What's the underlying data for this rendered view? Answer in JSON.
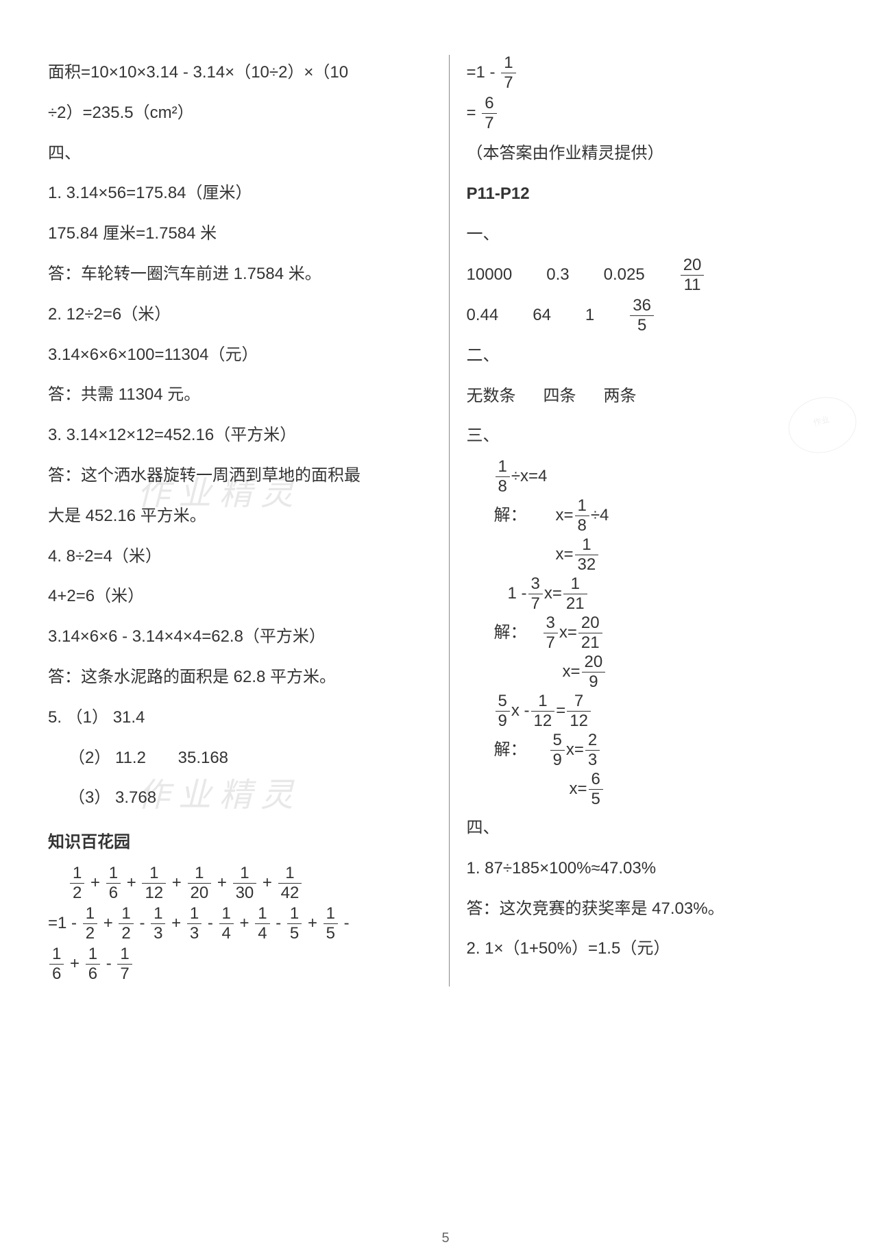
{
  "left": {
    "l1": "面积=10×10×3.14 - 3.14×（10÷2）×（10",
    "l2": "÷2）=235.5（cm²）",
    "l3": "四、",
    "l4": "1. 3.14×56=175.84（厘米）",
    "l5": "175.84 厘米=1.7584 米",
    "l6": "答：车轮转一圈汽车前进 1.7584 米。",
    "l7": "2. 12÷2=6（米）",
    "l8": "3.14×6×6×100=11304（元）",
    "l9": "答：共需 11304 元。",
    "l10": "3. 3.14×12×12=452.16（平方米）",
    "l11": "答：这个洒水器旋转一周洒到草地的面积最",
    "l12": "大是 452.16 平方米。",
    "l13": "4. 8÷2=4（米）",
    "l14": "4+2=6（米）",
    "l15": "3.14×6×6 - 3.14×4×4=62.8（平方米）",
    "l16": "答：这条水泥路的面积是 62.8 平方米。",
    "l17": "5. （1） 31.4",
    "l18a": "（2） 11.2",
    "l18b": "35.168",
    "l19": "（3） 3.768",
    "l20": "知识百花园",
    "fracs_row1": [
      {
        "n": "1",
        "d": "2"
      },
      {
        "n": "1",
        "d": "6"
      },
      {
        "n": "1",
        "d": "12"
      },
      {
        "n": "1",
        "d": "20"
      },
      {
        "n": "1",
        "d": "30"
      },
      {
        "n": "1",
        "d": "42"
      }
    ],
    "fracs_row2_parts": [
      "=1 - ",
      " + ",
      " - ",
      " + ",
      " - ",
      " + ",
      " - ",
      " + ",
      " - "
    ],
    "fracs_row2": [
      {
        "n": "1",
        "d": "2"
      },
      {
        "n": "1",
        "d": "2"
      },
      {
        "n": "1",
        "d": "3"
      },
      {
        "n": "1",
        "d": "3"
      },
      {
        "n": "1",
        "d": "4"
      },
      {
        "n": "1",
        "d": "4"
      },
      {
        "n": "1",
        "d": "5"
      },
      {
        "n": "1",
        "d": "5"
      }
    ],
    "fracs_row3": [
      {
        "n": "1",
        "d": "6"
      },
      {
        "n": "1",
        "d": "6"
      },
      {
        "n": "1",
        "d": "7"
      }
    ]
  },
  "right": {
    "r1_pre": "=1 - ",
    "r1_frac": {
      "n": "1",
      "d": "7"
    },
    "r2_pre": "= ",
    "r2_frac": {
      "n": "6",
      "d": "7"
    },
    "r3": "（本答案由作业精灵提供）",
    "r4": "P11-P12",
    "r5": "一、",
    "row1": {
      "a": "10000",
      "b": "0.3",
      "c": "0.025",
      "d": {
        "n": "20",
        "d": "11"
      }
    },
    "row2": {
      "a": "0.44",
      "b": "64",
      "c": "1",
      "d": {
        "n": "36",
        "d": "5"
      }
    },
    "r6": "二、",
    "r7a": "无数条",
    "r7b": "四条",
    "r7c": "两条",
    "r8": "三、",
    "eq1_lhs": {
      "n": "1",
      "d": "8"
    },
    "eq1_rest": " ÷x=4",
    "solve_label": "解：",
    "eq1_s1_pre": "x= ",
    "eq1_s1_frac": {
      "n": "1",
      "d": "8"
    },
    "eq1_s1_post": " ÷4",
    "eq1_s2_pre": "x= ",
    "eq1_s2_frac": {
      "n": "1",
      "d": "32"
    },
    "eq2_pre": "1 - ",
    "eq2_f1": {
      "n": "3",
      "d": "7"
    },
    "eq2_mid": "x= ",
    "eq2_f2": {
      "n": "1",
      "d": "21"
    },
    "eq2_s1_f1": {
      "n": "3",
      "d": "7"
    },
    "eq2_s1_mid": "x= ",
    "eq2_s1_f2": {
      "n": "20",
      "d": "21"
    },
    "eq2_s2_pre": "x= ",
    "eq2_s2_frac": {
      "n": "20",
      "d": "9"
    },
    "eq3_f1": {
      "n": "5",
      "d": "9"
    },
    "eq3_mid1": "x - ",
    "eq3_f2": {
      "n": "1",
      "d": "12"
    },
    "eq3_mid2": " = ",
    "eq3_f3": {
      "n": "7",
      "d": "12"
    },
    "eq3_s1_f1": {
      "n": "5",
      "d": "9"
    },
    "eq3_s1_mid": "x= ",
    "eq3_s1_f2": {
      "n": "2",
      "d": "3"
    },
    "eq3_s2_pre": "x= ",
    "eq3_s2_frac": {
      "n": "6",
      "d": "5"
    },
    "r9": "四、",
    "r10": "1. 87÷185×100%≈47.03%",
    "r11": "答：这次竞赛的获奖率是 47.03%。",
    "r12": "2. 1×（1+50%）=1.5（元）"
  },
  "watermark_text": "作 业 精 灵",
  "stamp_text": "作业",
  "page_number": "5"
}
